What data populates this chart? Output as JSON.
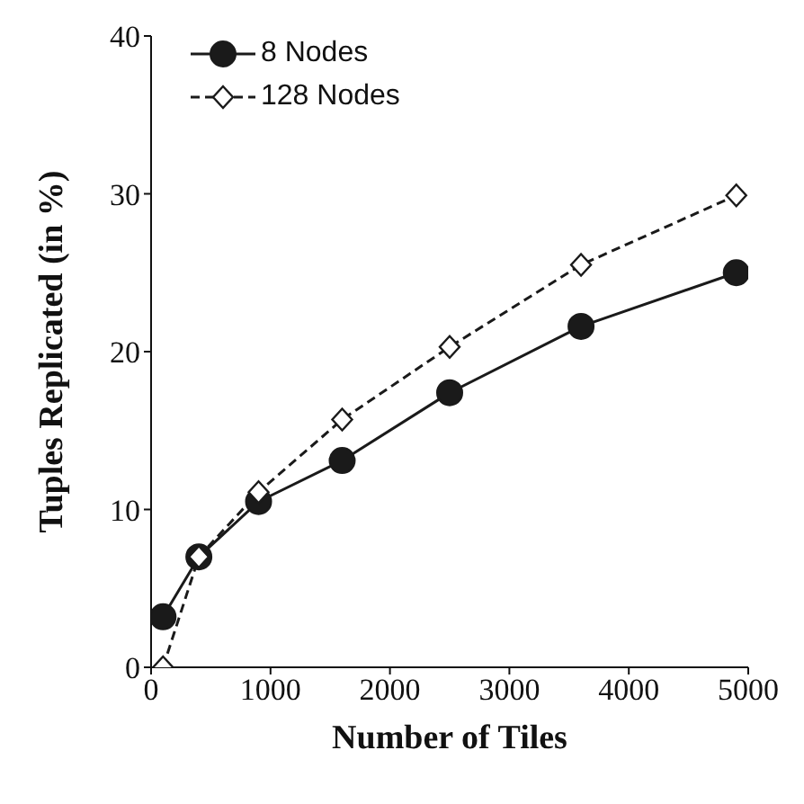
{
  "chart_data": {
    "type": "line",
    "xlabel": "Number of Tiles",
    "ylabel": "Tuples Replicated (in %)",
    "x": [
      100,
      400,
      900,
      1600,
      2500,
      3600,
      4900
    ],
    "series": [
      {
        "name": "8 Nodes",
        "color": "#1a1a1a",
        "values": [
          3.2,
          7.0,
          10.5,
          13.1,
          17.4,
          21.6,
          25.0
        ],
        "marker": "circle",
        "line_style": "solid"
      },
      {
        "name": "128 Nodes",
        "color": "#1a1a1a",
        "values": [
          0,
          7.0,
          11.1,
          15.7,
          20.3,
          25.5,
          29.9
        ],
        "marker": "diamond",
        "line_style": "dashed"
      }
    ],
    "xlim": [
      0,
      5000
    ],
    "xticks": [
      0,
      1000,
      2000,
      3000,
      4000,
      5000
    ],
    "ylim": [
      0,
      40
    ],
    "yticks": [
      0,
      10,
      20,
      30,
      40
    ],
    "grid": false,
    "legend": "top left"
  }
}
